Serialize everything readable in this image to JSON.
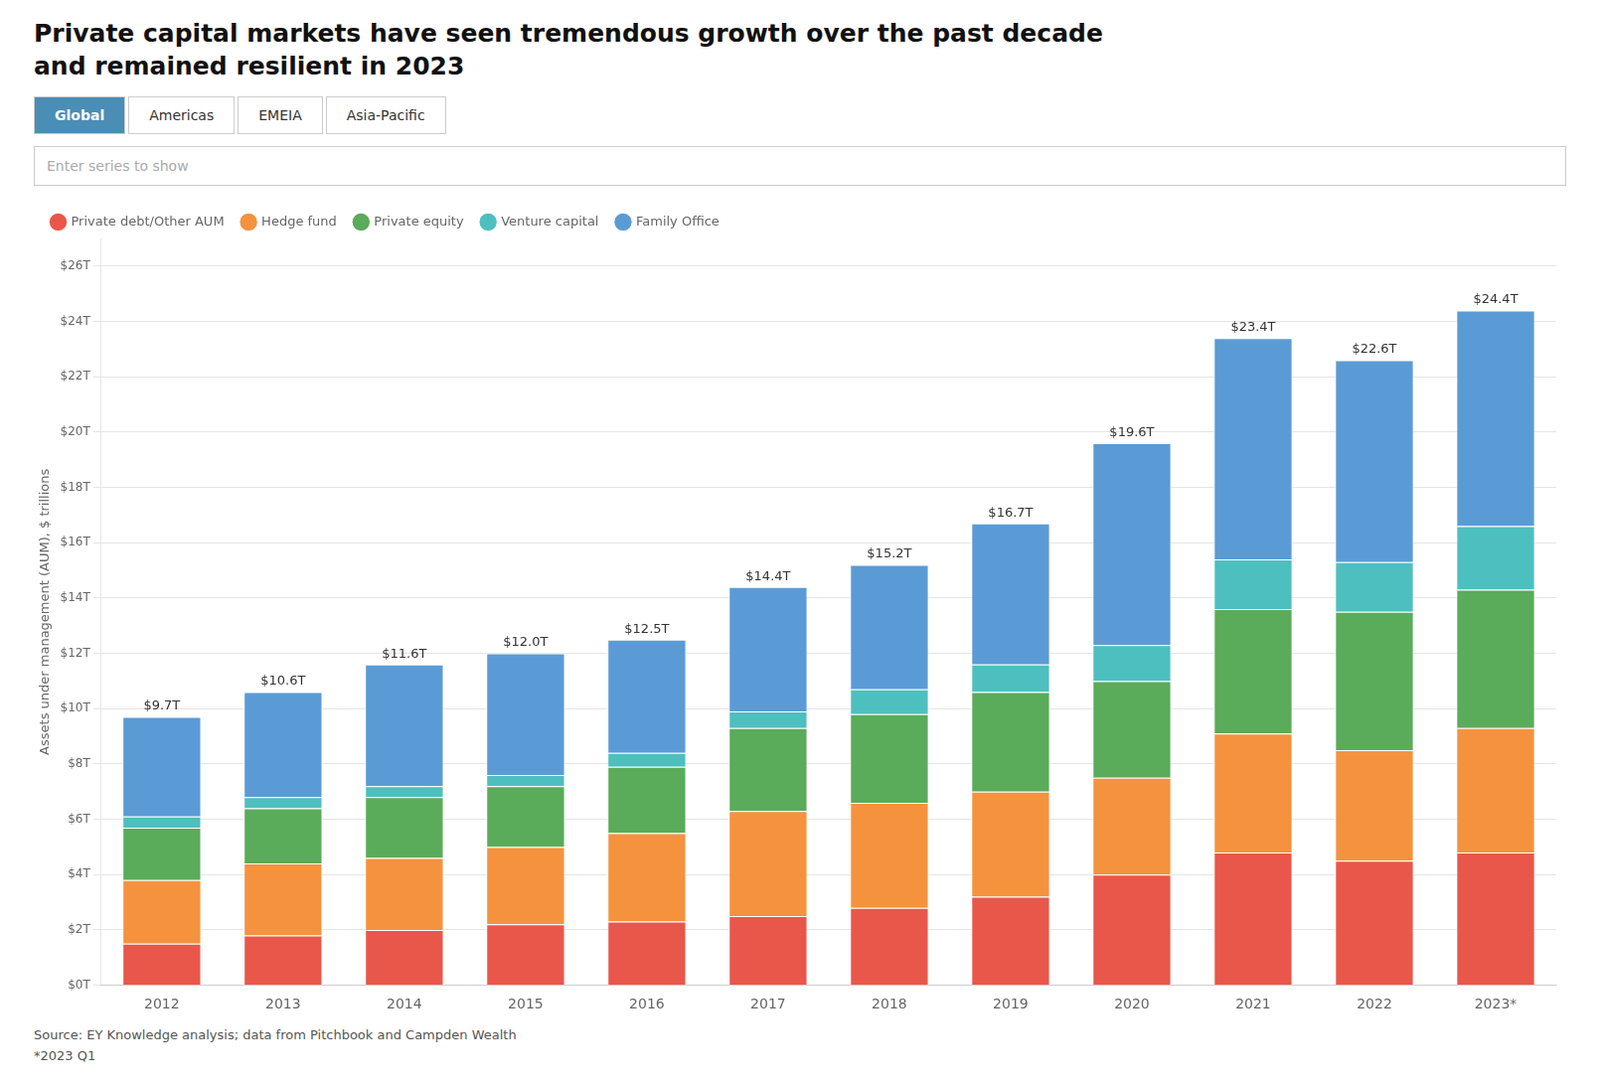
{
  "chart_data": {
    "type": "bar",
    "stacked": true,
    "title": [
      "Private capital markets have seen tremendous growth over the past decade",
      "and remained resilient in 2023"
    ],
    "tabs": [
      "Global",
      "Americas",
      "EMEIA",
      "Asia-Pacific"
    ],
    "active_tab": "Global",
    "search_placeholder": "Enter series to show",
    "annotations": [
      "Source: EY Knowledge analysis; data from Pitchbook and Campden Wealth",
      "*2023 Q1"
    ],
    "ylabel": "Assets under management (AUM), $ trillions",
    "categories": [
      "2012",
      "2013",
      "2014",
      "2015",
      "2016",
      "2017",
      "2018",
      "2019",
      "2020",
      "2021",
      "2022",
      "2023*"
    ],
    "series": [
      {
        "name": "Private debt/Other AUM",
        "color": "#E8574A",
        "values": [
          1.5,
          1.8,
          2.0,
          2.2,
          2.3,
          2.5,
          2.8,
          3.2,
          4.0,
          4.8,
          4.5,
          4.8
        ]
      },
      {
        "name": "Hedge fund",
        "color": "#F5923E",
        "values": [
          2.3,
          2.6,
          2.6,
          2.8,
          3.2,
          3.8,
          3.8,
          3.8,
          3.5,
          4.3,
          4.0,
          4.5
        ]
      },
      {
        "name": "Private equity",
        "color": "#5AAB5A",
        "values": [
          1.9,
          2.0,
          2.2,
          2.2,
          2.4,
          3.0,
          3.2,
          3.6,
          3.5,
          4.5,
          5.0,
          5.0
        ]
      },
      {
        "name": "Venture capital",
        "color": "#4DBFBF",
        "values": [
          0.4,
          0.4,
          0.4,
          0.4,
          0.5,
          0.6,
          0.9,
          1.0,
          1.3,
          1.8,
          1.8,
          2.3
        ]
      },
      {
        "name": "Family Office",
        "color": "#5B9BD5",
        "values": [
          3.6,
          3.8,
          4.4,
          4.4,
          4.1,
          4.5,
          4.5,
          5.1,
          7.3,
          8.0,
          7.3,
          7.8
        ]
      }
    ],
    "totals": [
      9.7,
      10.6,
      11.6,
      12.0,
      12.5,
      14.4,
      15.2,
      16.7,
      19.6,
      23.4,
      22.6,
      24.4
    ],
    "total_labels": [
      "$9.7T",
      "$10.6T",
      "$11.6T",
      "$12.0T",
      "$12.5T",
      "$14.4T",
      "$15.2T",
      "$16.7T",
      "$19.6T",
      "$23.4T",
      "$22.6T",
      "$24.4T"
    ],
    "ylim": [
      0,
      27
    ],
    "yticks": [
      {
        "value": 0,
        "label": "$0T"
      },
      {
        "value": 2,
        "label": "$2T"
      },
      {
        "value": 4,
        "label": "$4T"
      },
      {
        "value": 6,
        "label": "$6T"
      },
      {
        "value": 8,
        "label": "$8T"
      },
      {
        "value": 10,
        "label": "$10T"
      },
      {
        "value": 12,
        "label": "$12T"
      },
      {
        "value": 14,
        "label": "$14T"
      },
      {
        "value": 16,
        "label": "$16T"
      },
      {
        "value": 18,
        "label": "$18T"
      },
      {
        "value": 20,
        "label": "$20T"
      },
      {
        "value": 22,
        "label": "$22T"
      },
      {
        "value": 24,
        "label": "$24T"
      },
      {
        "value": 26,
        "label": "$26T"
      }
    ],
    "grid": true,
    "legend": "top"
  }
}
